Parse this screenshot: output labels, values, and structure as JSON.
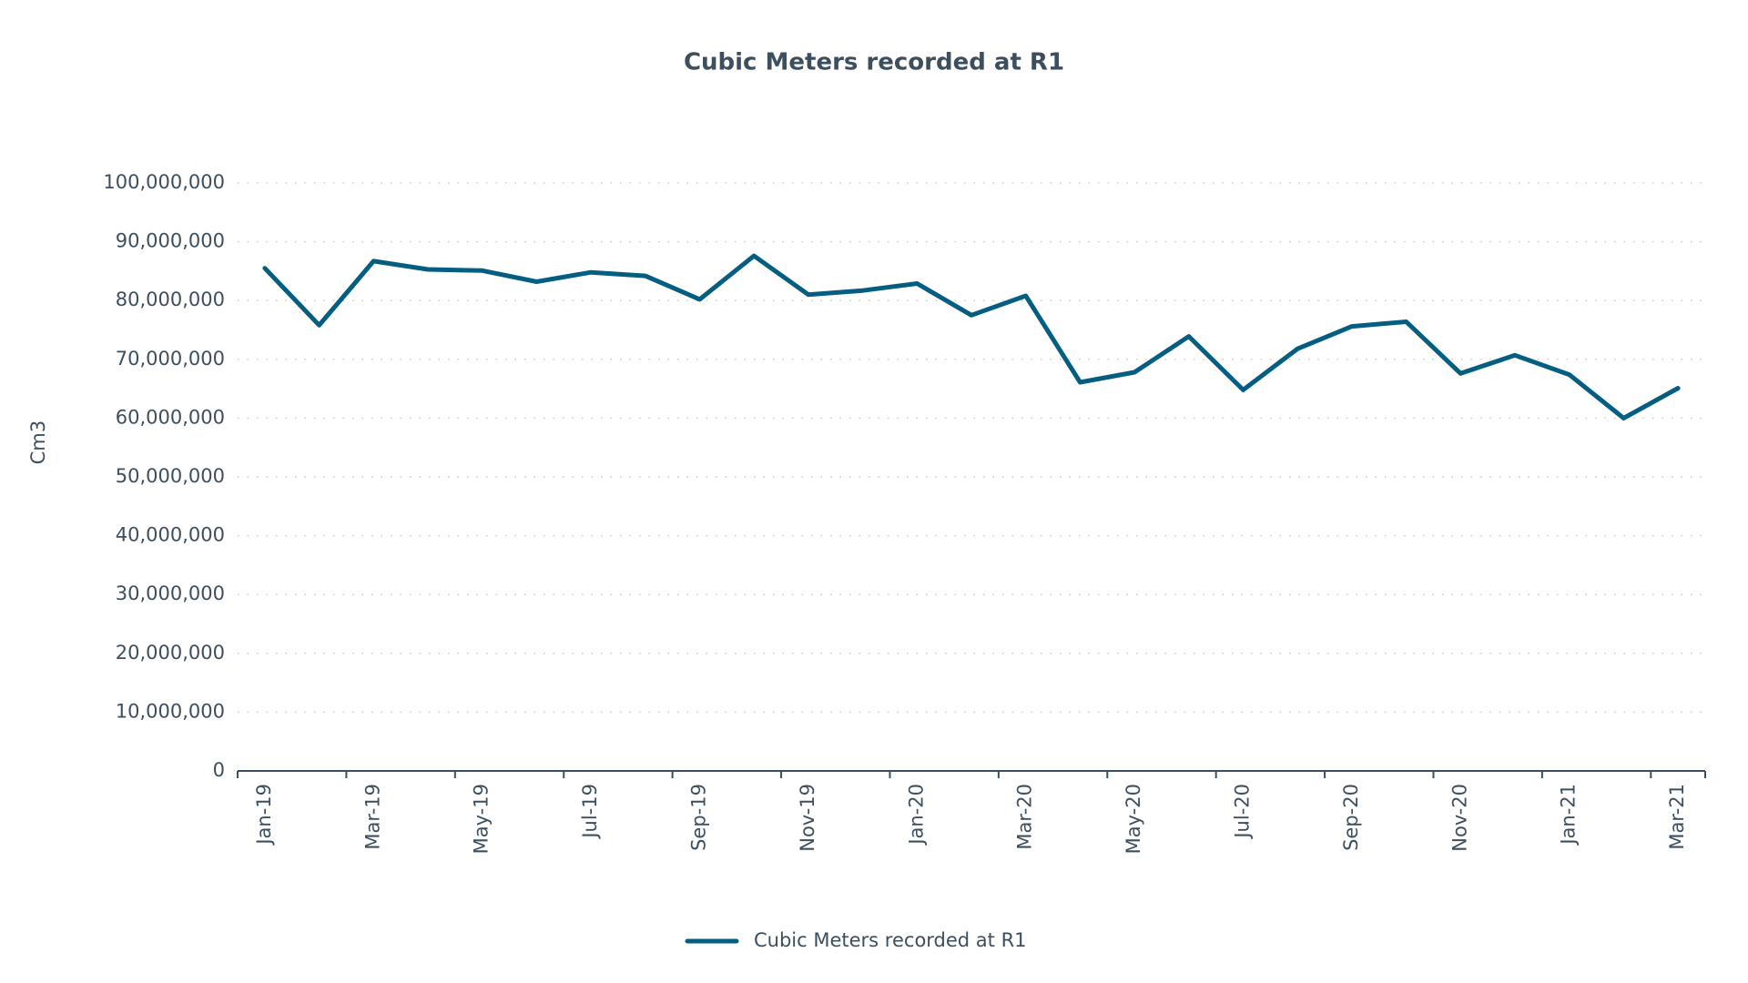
{
  "chart_data": {
    "type": "line",
    "title": "Cubic Meters recorded at R1",
    "y_label": "Cm3",
    "categories": [
      "Jan-19",
      null,
      "Mar-19",
      null,
      "May-19",
      null,
      "Jul-19",
      null,
      "Sep-19",
      null,
      "Nov-19",
      null,
      "Jan-20",
      null,
      "Mar-20",
      null,
      "May-20",
      null,
      "Jul-20",
      null,
      "Sep-20",
      null,
      "Nov-20",
      null,
      "Jan-21",
      null,
      "Mar-21"
    ],
    "series": [
      {
        "name": "Cubic Meters recorded at R1",
        "color": "#045e82",
        "values": [
          85500000,
          75800000,
          86700000,
          85300000,
          85100000,
          83200000,
          84800000,
          84200000,
          80200000,
          87600000,
          81000000,
          81700000,
          82900000,
          77500000,
          80800000,
          66100000,
          67800000,
          73900000,
          64800000,
          71800000,
          75600000,
          76400000,
          67600000,
          70700000,
          67400000,
          60000000,
          65100000
        ]
      }
    ],
    "ylim": [
      0,
      100000000
    ],
    "yticks": [
      0,
      {
        "value": 10000000,
        "label": "10,000,000"
      },
      {
        "value": 20000000,
        "label": "20,000,000"
      },
      {
        "value": 30000000,
        "label": "30,000,000"
      },
      {
        "value": 40000000,
        "label": "40,000,000"
      },
      {
        "value": 50000000,
        "label": "50,000,000"
      },
      {
        "value": 60000000,
        "label": "60,000,000"
      },
      {
        "value": 70000000,
        "label": "70,000,000"
      },
      {
        "value": 80000000,
        "label": "80,000,000"
      },
      {
        "value": 90000000,
        "label": "90,000,000"
      },
      {
        "value": 100000000,
        "label": "100,000,000"
      }
    ],
    "grid": true,
    "legend": "bottom"
  }
}
